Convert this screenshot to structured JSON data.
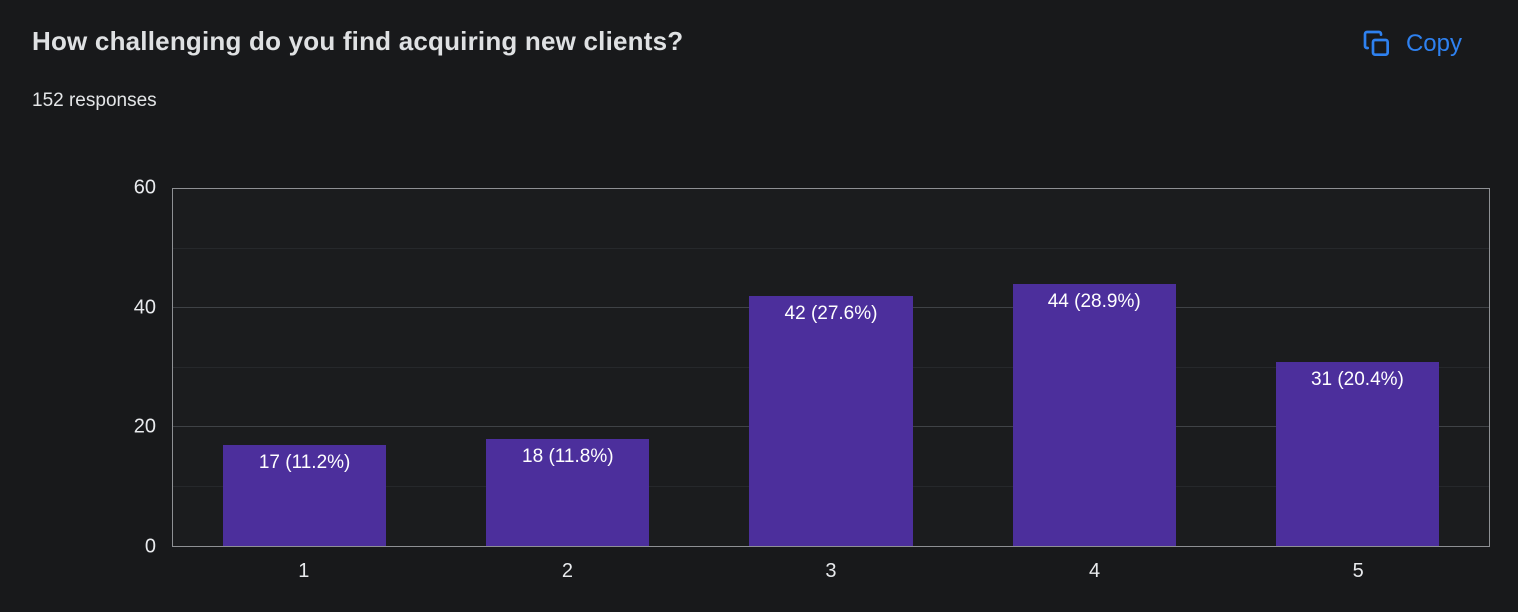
{
  "header": {
    "title": "How challenging do you find acquiring new clients?",
    "responses": "152 responses",
    "copy_label": "Copy"
  },
  "colors": {
    "accent_blue": "#2e81f0",
    "bar_purple": "#4c2f9c",
    "background": "#18191b"
  },
  "chart_data": {
    "type": "bar",
    "title": "How challenging do you find acquiring new clients?",
    "categories": [
      "1",
      "2",
      "3",
      "4",
      "5"
    ],
    "values": [
      17,
      18,
      42,
      44,
      31
    ],
    "bar_labels": [
      "17 (11.2%)",
      "18 (11.8%)",
      "42 (27.6%)",
      "44 (28.9%)",
      "31 (20.4%)"
    ],
    "percentages": [
      11.2,
      11.8,
      27.6,
      28.9,
      20.4
    ],
    "total_responses": 152,
    "xlabel": "",
    "ylabel": "",
    "ylim": [
      0,
      60
    ],
    "y_ticks": [
      0,
      20,
      40,
      60
    ],
    "minor_ticks": [
      10,
      30,
      50
    ],
    "grid": true,
    "legend": "none",
    "bar_color": "#4c2f9c"
  }
}
